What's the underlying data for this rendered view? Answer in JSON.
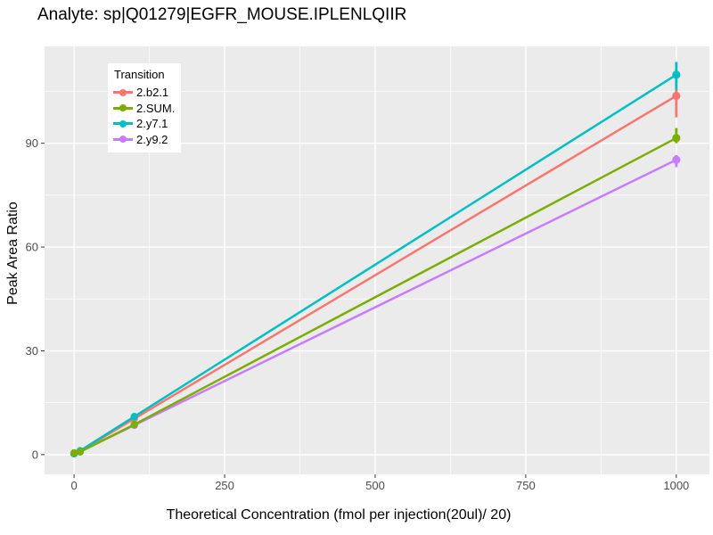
{
  "chart_data": {
    "type": "line",
    "title": "Analyte: sp|Q01279|EGFR_MOUSE.IPLENLQIIR",
    "xlabel": "Theoretical Concentration (fmol per injection(20ul)/ 20)",
    "ylabel": "Peak Area Ratio",
    "xlim": [
      -49,
      1055
    ],
    "ylim": [
      -5.7,
      118
    ],
    "xticks": [
      0,
      250,
      500,
      750,
      1000
    ],
    "yticks": [
      0,
      30,
      60,
      90
    ],
    "xminor": [
      125,
      375,
      625,
      875
    ],
    "yminor": [
      15,
      45,
      75,
      105
    ],
    "x": [
      0,
      10,
      100,
      1000
    ],
    "series": [
      {
        "name": "2.b2.1",
        "color": "#F8766D",
        "values": [
          0.3,
          1.0,
          10.4,
          103.7
        ],
        "errorbar": {
          "x": 1000,
          "low": 97.5,
          "high": 105.6
        }
      },
      {
        "name": "2.SUM.",
        "color": "#7CAE00",
        "values": [
          0.5,
          0.8,
          8.7,
          91.5
        ],
        "errorbar": {
          "x": 1000,
          "low": 90.0,
          "high": 94.4
        }
      },
      {
        "name": "2.y7.1",
        "color": "#00BFC4",
        "values": [
          0.3,
          1.1,
          11.0,
          109.8
        ],
        "errorbar": {
          "x": 1000,
          "low": 105.5,
          "high": 113.5
        }
      },
      {
        "name": "2.y9.2",
        "color": "#C77CFF",
        "values": [
          0.25,
          0.9,
          8.5,
          85.2
        ],
        "errorbar": {
          "x": 1000,
          "low": 83.1,
          "high": 86.6
        }
      }
    ],
    "legend": {
      "title": "Transition",
      "position": "inside-top-left"
    },
    "panel_bg": "#EBEBEB",
    "grid_color": "#FFFFFF",
    "tick_color": "#333333",
    "tick_text_color": "#4D4D4D"
  }
}
